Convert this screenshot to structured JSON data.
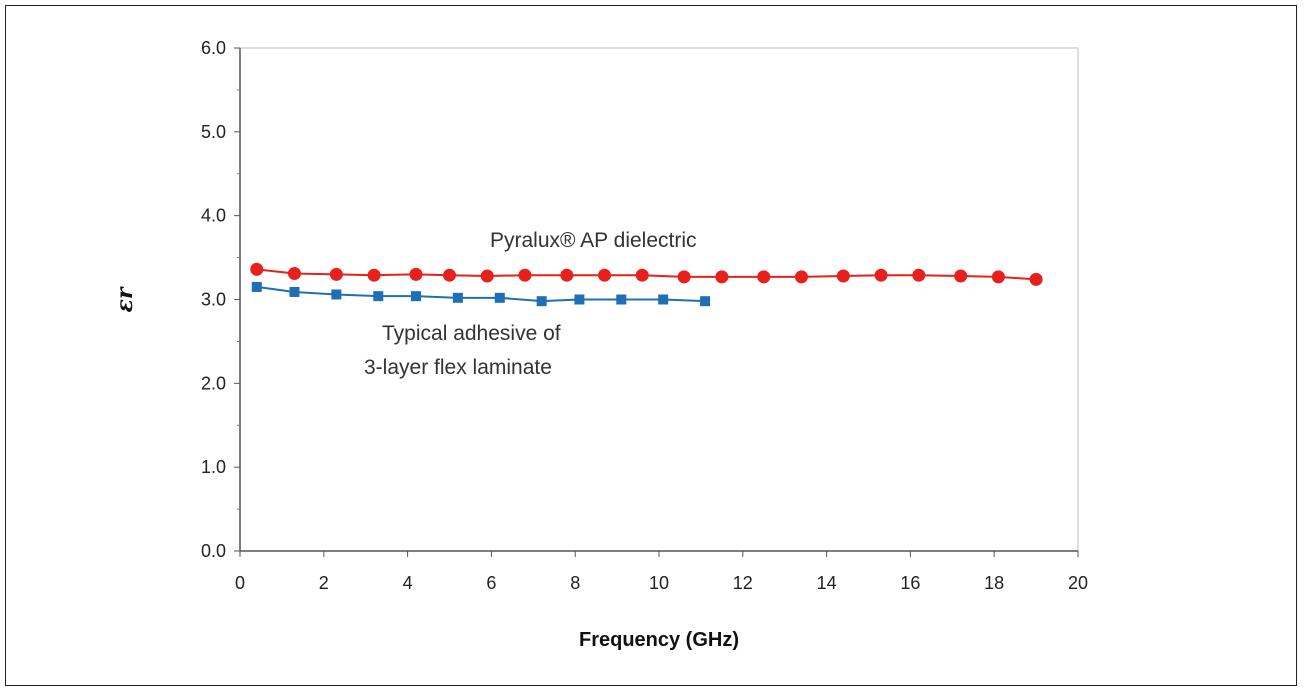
{
  "chart_data": {
    "type": "line",
    "xlabel": "Frequency (GHz)",
    "ylabel": "εr",
    "xlim": [
      0,
      20
    ],
    "ylim": [
      0,
      6
    ],
    "x_ticks": [
      "0",
      "2",
      "4",
      "6",
      "8",
      "10",
      "12",
      "14",
      "16",
      "18",
      "20"
    ],
    "y_ticks": [
      "0.0",
      "1.0",
      "2.0",
      "3.0",
      "4.0",
      "5.0",
      "6.0"
    ],
    "grid": false,
    "series": [
      {
        "name": "Pyralux® AP dielectric",
        "color": "#e8201c",
        "marker": "circle",
        "x": [
          0.4,
          1.3,
          2.3,
          3.2,
          4.2,
          5.0,
          5.9,
          6.8,
          7.8,
          8.7,
          9.6,
          10.6,
          11.5,
          12.5,
          13.4,
          14.4,
          15.3,
          16.2,
          17.2,
          18.1,
          19.0
        ],
        "y": [
          3.36,
          3.31,
          3.3,
          3.29,
          3.3,
          3.29,
          3.28,
          3.29,
          3.29,
          3.29,
          3.29,
          3.27,
          3.27,
          3.27,
          3.27,
          3.28,
          3.29,
          3.29,
          3.28,
          3.27,
          3.24
        ]
      },
      {
        "name": "Typical adhesive of 3-layer flex laminate",
        "color": "#1f6fb4",
        "marker": "square",
        "x": [
          0.4,
          1.3,
          2.3,
          3.3,
          4.2,
          5.2,
          6.2,
          7.2,
          8.1,
          9.1,
          10.1,
          11.1
        ],
        "y": [
          3.15,
          3.09,
          3.06,
          3.04,
          3.04,
          3.02,
          3.02,
          2.98,
          3.0,
          3.0,
          3.0,
          2.98
        ]
      }
    ],
    "annotations": [
      {
        "text": "Pyralux® AP dielectric",
        "series": 0
      },
      {
        "text": "Typical adhesive of",
        "series": 1
      },
      {
        "text": "3-layer flex laminate",
        "series": 1
      }
    ]
  }
}
